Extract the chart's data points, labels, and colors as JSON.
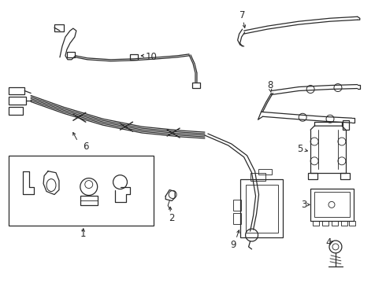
{
  "bg_color": "#ffffff",
  "line_color": "#2a2a2a",
  "lw": 0.9,
  "figsize": [
    4.9,
    3.6
  ],
  "dpi": 100
}
